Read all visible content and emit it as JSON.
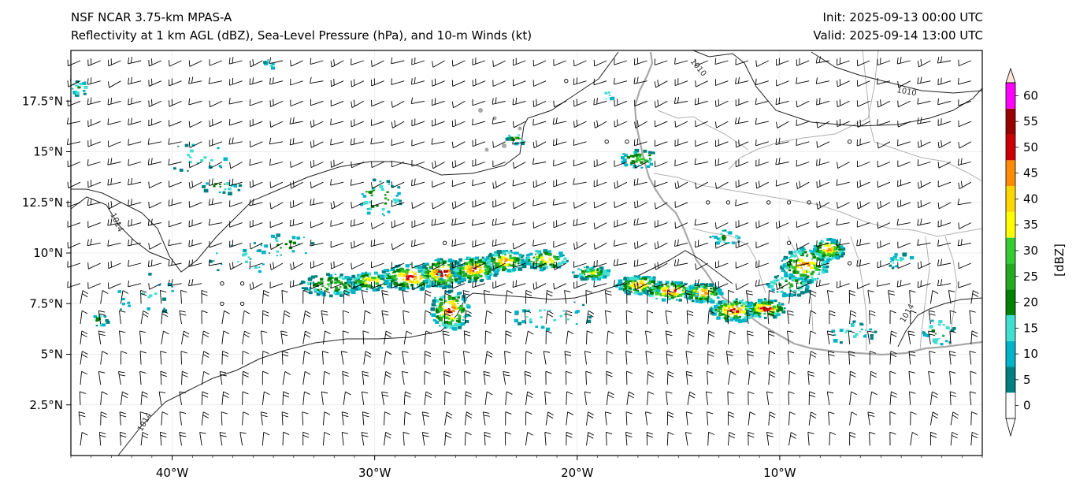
{
  "header": {
    "title_line1": "NSF NCAR 3.75-km MPAS-A",
    "title_line2": "Reflectivity at 1 km AGL (dBZ), Sea-Level Pressure (hPa), and 10-m Winds (kt)",
    "init": "Init: 2025-09-13 00:00 UTC",
    "valid": "Valid: 2025-09-14 13:00 UTC"
  },
  "map": {
    "lon_range": [
      -45,
      0
    ],
    "lat_range": [
      0,
      20
    ],
    "lon_ticks": [
      {
        "value": -40,
        "label": "40°W"
      },
      {
        "value": -30,
        "label": "30°W"
      },
      {
        "value": -20,
        "label": "20°W"
      },
      {
        "value": -10,
        "label": "10°W"
      }
    ],
    "lat_ticks": [
      {
        "value": 2.5,
        "label": "2.5°N"
      },
      {
        "value": 5,
        "label": "5°N"
      },
      {
        "value": 7.5,
        "label": "7.5°N"
      },
      {
        "value": 10,
        "label": "10°N"
      },
      {
        "value": 12.5,
        "label": "12.5°N"
      },
      {
        "value": 15,
        "label": "15°N"
      },
      {
        "value": 17.5,
        "label": "17.5°N"
      }
    ],
    "isobar_labels": [
      "1010",
      "1010",
      "1014",
      "1014",
      "1014"
    ]
  },
  "colorbar": {
    "unit_label": "[dBZ]",
    "levels": [
      {
        "value": "0",
        "color": "#008080"
      },
      {
        "value": "5",
        "color": "#00b4c8"
      },
      {
        "value": "10",
        "color": "#40e0d0"
      },
      {
        "value": "15",
        "color": "#008000"
      },
      {
        "value": "20",
        "color": "#22aa22"
      },
      {
        "value": "25",
        "color": "#33cc33"
      },
      {
        "value": "30",
        "color": "#ffff00"
      },
      {
        "value": "35",
        "color": "#ffd700"
      },
      {
        "value": "40",
        "color": "#ff8c00"
      },
      {
        "value": "45",
        "color": "#cc0000"
      },
      {
        "value": "50",
        "color": "#990000"
      },
      {
        "value": "55",
        "color": "#ff00ff"
      },
      {
        "value": "60",
        "color": "#ffe4d6"
      }
    ]
  }
}
